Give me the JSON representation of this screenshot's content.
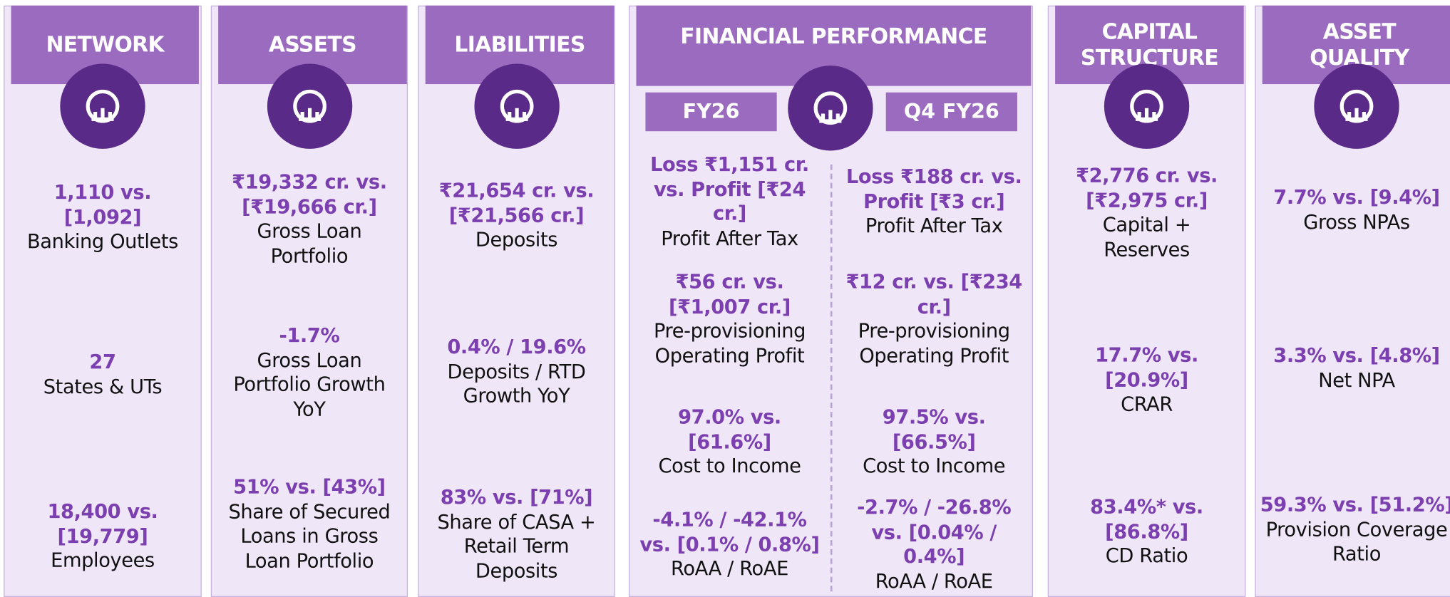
{
  "columns": [
    {
      "title": "NETWORK",
      "items": [
        {
          "value": "1,110 vs. [1,092]",
          "label": "Banking Outlets"
        },
        {
          "value": "27",
          "label": "States & UTs"
        },
        {
          "value": "18,400 vs. [19,779]",
          "label": "Employees"
        }
      ]
    },
    {
      "title": "ASSETS",
      "items": [
        {
          "value": "₹19,332 cr. vs. [₹19,666 cr.]",
          "label": "Gross Loan Portfolio"
        },
        {
          "value": "-1.7%",
          "label": "Gross Loan Portfolio Growth YoY"
        },
        {
          "value": "51% vs. [43%]",
          "label": "Share of Secured Loans in Gross Loan Portfolio"
        }
      ]
    },
    {
      "title": "LIABILITIES",
      "items": [
        {
          "value": "₹21,654 cr. vs. [₹21,566 cr.]",
          "label": "Deposits"
        },
        {
          "value": "0.4% / 19.6%",
          "label": "Deposits / RTD Growth YoY"
        },
        {
          "value": "83% vs. [71%]",
          "label": "Share of CASA + Retail Term Deposits"
        }
      ]
    },
    {
      "title": "FINANCIAL PERFORMANCE",
      "periods": [
        {
          "title": "FY26",
          "items": [
            {
              "value": "Loss ₹1,151 cr. vs. Profit [₹24 cr.]",
              "label": "Profit After Tax"
            },
            {
              "value": "₹56 cr. vs. [₹1,007 cr.]",
              "label": "Pre-provisioning Operating Profit"
            },
            {
              "value": "97.0% vs. [61.6%]",
              "label": "Cost to Income"
            },
            {
              "value": "-4.1% / -42.1% vs. [0.1% / 0.8%]",
              "label": "RoAA / RoAE"
            }
          ]
        },
        {
          "title": "Q4 FY26",
          "items": [
            {
              "value": "Loss ₹188 cr. vs. Profit [₹3 cr.]",
              "label": "Profit After Tax"
            },
            {
              "value": "₹12 cr. vs. [₹234 cr.]",
              "label": "Pre-provisioning Operating Profit"
            },
            {
              "value": "97.5% vs. [66.5%]",
              "label": "Cost to Income"
            },
            {
              "value": "-2.7% / -26.8% vs. [0.04% / 0.4%]",
              "label": "RoAA / RoAE"
            }
          ]
        }
      ]
    },
    {
      "title": "CAPITAL STRUCTURE",
      "items": [
        {
          "value": "₹2,776 cr. vs. [₹2,975 cr.]",
          "label": "Capital + Reserves"
        },
        {
          "value": "17.7% vs. [20.9%]",
          "label": "CRAR"
        },
        {
          "value": "83.4%* vs. [86.8%]",
          "label": "CD Ratio"
        }
      ]
    },
    {
      "title": "ASSET QUALITY",
      "items": [
        {
          "value": "7.7% vs. [9.4%]",
          "label": "Gross NPAs"
        },
        {
          "value": "3.3% vs. [4.8%]",
          "label": "Net NPA"
        },
        {
          "value": "59.3% vs. [51.2%]",
          "label": "Provision Coverage Ratio"
        }
      ]
    }
  ]
}
